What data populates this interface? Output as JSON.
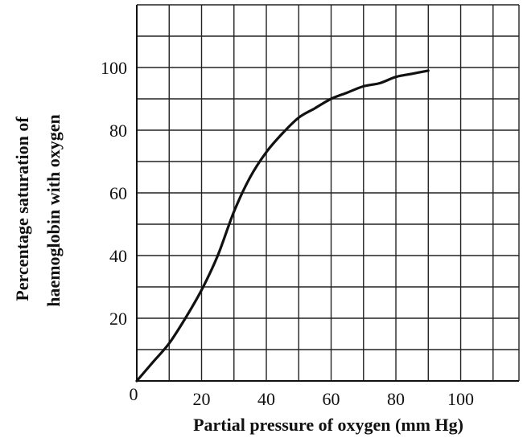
{
  "chart_data": {
    "type": "line",
    "title": "",
    "xlabel": "Partial pressure of oxygen (mm Hg)",
    "ylabel_lines": [
      "Percentage saturation of",
      "haemoglobin with oxygen"
    ],
    "xlim": [
      0,
      118
    ],
    "ylim": [
      0,
      120
    ],
    "x_ticks": [
      0,
      20,
      40,
      60,
      80,
      100
    ],
    "y_ticks": [
      20,
      40,
      60,
      80,
      100
    ],
    "grid": true,
    "grid_step_x": 10,
    "grid_step_y": 10,
    "series": [
      {
        "x": [
          0,
          5,
          10,
          15,
          20,
          25,
          30,
          35,
          40,
          45,
          50,
          55,
          60,
          65,
          70,
          75,
          80,
          85,
          90
        ],
        "y": [
          0,
          6,
          12,
          20,
          29,
          40,
          54,
          65,
          73,
          79,
          84,
          87,
          90,
          92,
          94,
          95,
          97,
          98,
          99
        ]
      }
    ]
  }
}
